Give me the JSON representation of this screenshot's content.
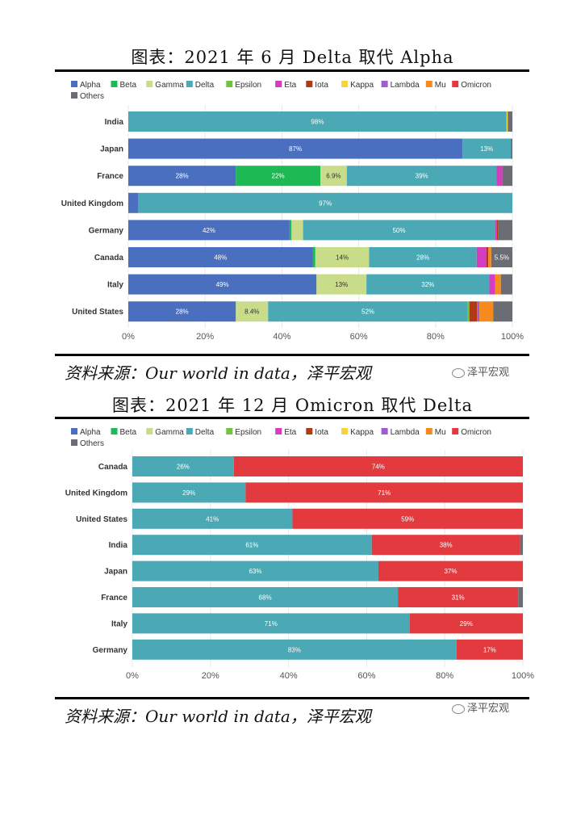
{
  "chart_top": {
    "title": "图表：2021 年 6 月 Delta 取代 Alpha",
    "source": "资料来源：Our world in data，泽平宏观",
    "watermark": "泽平宏观"
  },
  "chart_bottom": {
    "title": "图表：2021 年 12 月 Omicron 取代 Delta",
    "source": "资料来源：Our world in data，泽平宏观",
    "watermark": "泽平宏观"
  },
  "legend": [
    {
      "name": "Alpha",
      "color": "#4a6fbf"
    },
    {
      "name": "Beta",
      "color": "#1db954"
    },
    {
      "name": "Gamma",
      "color": "#c9dc8a"
    },
    {
      "name": "Delta",
      "color": "#4aa9b5"
    },
    {
      "name": "Epsilon",
      "color": "#6ec33f"
    },
    {
      "name": "Eta",
      "color": "#d63cc0"
    },
    {
      "name": "Iota",
      "color": "#b03a14"
    },
    {
      "name": "Kappa",
      "color": "#f2d43c"
    },
    {
      "name": "Lambda",
      "color": "#a05ad2"
    },
    {
      "name": "Mu",
      "color": "#f58a1f"
    },
    {
      "name": "Omicron",
      "color": "#e23a3e"
    },
    {
      "name": "Others",
      "color": "#6b6d75"
    }
  ],
  "chart_data": [
    {
      "type": "bar",
      "orientation": "horizontal",
      "stacked": true,
      "title": "图表：2021 年 6 月 Delta 取代 Alpha",
      "xlim": [
        0,
        100
      ],
      "xticks": [
        "0%",
        "20%",
        "40%",
        "60%",
        "80%",
        "100%"
      ],
      "categories": [
        "India",
        "Japan",
        "France",
        "United Kingdom",
        "Germany",
        "Canada",
        "Italy",
        "United States"
      ],
      "rows": [
        {
          "category": "India",
          "segments": [
            {
              "s": "Delta",
              "v": 98.5,
              "label": "98%"
            },
            {
              "s": "Kappa",
              "v": 0.3
            },
            {
              "s": "Others",
              "v": 1.2
            }
          ]
        },
        {
          "category": "Japan",
          "segments": [
            {
              "s": "Alpha",
              "v": 87,
              "label": "87%"
            },
            {
              "s": "Delta",
              "v": 12.6,
              "label": "13%"
            },
            {
              "s": "Others",
              "v": 0.4
            }
          ]
        },
        {
          "category": "France",
          "segments": [
            {
              "s": "Alpha",
              "v": 28,
              "label": "28%"
            },
            {
              "s": "Beta",
              "v": 22,
              "label": "22%"
            },
            {
              "s": "Gamma",
              "v": 6.9,
              "label": "6.9%"
            },
            {
              "s": "Delta",
              "v": 39,
              "label": "39%"
            },
            {
              "s": "Eta",
              "v": 1.5
            },
            {
              "s": "Others",
              "v": 2.6
            }
          ]
        },
        {
          "category": "United Kingdom",
          "segments": [
            {
              "s": "Alpha",
              "v": 2.6
            },
            {
              "s": "Delta",
              "v": 97.4,
              "label": "97%"
            }
          ]
        },
        {
          "category": "Germany",
          "segments": [
            {
              "s": "Alpha",
              "v": 42,
              "label": "42%"
            },
            {
              "s": "Beta",
              "v": 0.5
            },
            {
              "s": "Gamma",
              "v": 3
            },
            {
              "s": "Delta",
              "v": 50,
              "label": "50%"
            },
            {
              "s": "Eta",
              "v": 0.5
            },
            {
              "s": "Iota",
              "v": 0.3
            },
            {
              "s": "Others",
              "v": 3.7
            }
          ]
        },
        {
          "category": "Canada",
          "segments": [
            {
              "s": "Alpha",
              "v": 48,
              "label": "48%"
            },
            {
              "s": "Beta",
              "v": 0.7
            },
            {
              "s": "Gamma",
              "v": 14,
              "label": "14%"
            },
            {
              "s": "Delta",
              "v": 28,
              "label": "28%"
            },
            {
              "s": "Eta",
              "v": 2.5
            },
            {
              "s": "Iota",
              "v": 0.5
            },
            {
              "s": "Mu",
              "v": 0.8
            },
            {
              "s": "Others",
              "v": 5.5,
              "label": "5.5%"
            }
          ]
        },
        {
          "category": "Italy",
          "segments": [
            {
              "s": "Alpha",
              "v": 49,
              "label": "49%"
            },
            {
              "s": "Gamma",
              "v": 13,
              "label": "13%"
            },
            {
              "s": "Delta",
              "v": 32,
              "label": "32%"
            },
            {
              "s": "Eta",
              "v": 1.5
            },
            {
              "s": "Mu",
              "v": 1.5
            },
            {
              "s": "Others",
              "v": 3
            }
          ]
        },
        {
          "category": "United States",
          "segments": [
            {
              "s": "Alpha",
              "v": 28,
              "label": "28%"
            },
            {
              "s": "Gamma",
              "v": 8.4,
              "label": "8.4%"
            },
            {
              "s": "Delta",
              "v": 52,
              "label": "52%"
            },
            {
              "s": "Epsilon",
              "v": 0.4
            },
            {
              "s": "Iota",
              "v": 2
            },
            {
              "s": "Lambda",
              "v": 0.6
            },
            {
              "s": "Mu",
              "v": 3.6
            },
            {
              "s": "Others",
              "v": 5
            }
          ]
        }
      ]
    },
    {
      "type": "bar",
      "orientation": "horizontal",
      "stacked": true,
      "title": "图表：2021 年 12 月 Omicron 取代 Delta",
      "xlim": [
        0,
        100
      ],
      "xticks": [
        "0%",
        "20%",
        "40%",
        "60%",
        "80%",
        "100%"
      ],
      "categories": [
        "Canada",
        "United Kingdom",
        "United States",
        "India",
        "Japan",
        "France",
        "Italy",
        "Germany"
      ],
      "rows": [
        {
          "category": "Canada",
          "segments": [
            {
              "s": "Delta",
              "v": 26,
              "label": "26%"
            },
            {
              "s": "Omicron",
              "v": 74,
              "label": "74%"
            }
          ]
        },
        {
          "category": "United Kingdom",
          "segments": [
            {
              "s": "Delta",
              "v": 29,
              "label": "29%"
            },
            {
              "s": "Omicron",
              "v": 71,
              "label": "71%"
            }
          ]
        },
        {
          "category": "United States",
          "segments": [
            {
              "s": "Delta",
              "v": 41,
              "label": "41%"
            },
            {
              "s": "Omicron",
              "v": 59,
              "label": "59%"
            }
          ]
        },
        {
          "category": "India",
          "segments": [
            {
              "s": "Delta",
              "v": 61.3,
              "label": "61%"
            },
            {
              "s": "Omicron",
              "v": 38,
              "label": "38%"
            },
            {
              "s": "Others",
              "v": 0.7
            }
          ]
        },
        {
          "category": "Japan",
          "segments": [
            {
              "s": "Delta",
              "v": 63,
              "label": "63%"
            },
            {
              "s": "Omicron",
              "v": 37,
              "label": "37%"
            }
          ]
        },
        {
          "category": "France",
          "segments": [
            {
              "s": "Delta",
              "v": 68,
              "label": "68%"
            },
            {
              "s": "Omicron",
              "v": 30.8,
              "label": "31%"
            },
            {
              "s": "Others",
              "v": 1.2
            }
          ]
        },
        {
          "category": "Italy",
          "segments": [
            {
              "s": "Delta",
              "v": 71,
              "label": "71%"
            },
            {
              "s": "Omicron",
              "v": 29,
              "label": "29%"
            }
          ]
        },
        {
          "category": "Germany",
          "segments": [
            {
              "s": "Delta",
              "v": 83,
              "label": "83%"
            },
            {
              "s": "Omicron",
              "v": 17,
              "label": "17%"
            }
          ]
        }
      ]
    }
  ]
}
